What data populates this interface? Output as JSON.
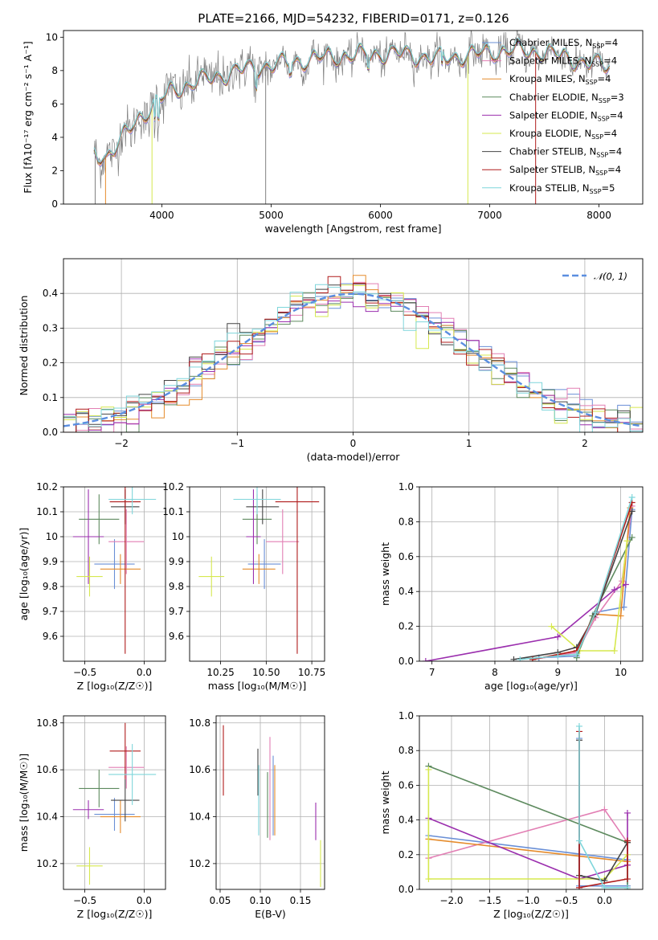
{
  "title": "PLATE=2166, MJD=54232, FIBERID=0171, z=0.126",
  "colors": {
    "chabrier_miles": "#6a8fd6",
    "salpeter_miles": "#e27fb4",
    "kroupa_miles": "#e58b2b",
    "chabrier_elodie": "#5d8a5e",
    "salpeter_elodie": "#9b2fae",
    "kroupa_elodie": "#d6e84f",
    "chabrier_stelib": "#444444",
    "salpeter_stelib": "#b01c1c",
    "kroupa_stelib": "#7fd6db",
    "data": "#808080",
    "normal": "#5b8ee0",
    "grid": "#b0b0b0"
  },
  "legend_top": [
    {
      "prefix": "Chabrier MILES, N",
      "sub": "SSP",
      "suffix": "=4",
      "color": "#6a8fd6"
    },
    {
      "prefix": "Salpeter MILES, N",
      "sub": "SSP",
      "suffix": "=4",
      "color": "#e27fb4"
    },
    {
      "prefix": "Kroupa MILES, N",
      "sub": "SSP",
      "suffix": "=4",
      "color": "#e58b2b"
    },
    {
      "prefix": "Chabrier ELODIE, N",
      "sub": "SSP",
      "suffix": "=3",
      "color": "#5d8a5e"
    },
    {
      "prefix": "Salpeter ELODIE, N",
      "sub": "SSP",
      "suffix": "=4",
      "color": "#9b2fae"
    },
    {
      "prefix": "Kroupa ELODIE, N",
      "sub": "SSP",
      "suffix": "=4",
      "color": "#d6e84f"
    },
    {
      "prefix": "Chabrier STELIB, N",
      "sub": "SSP",
      "suffix": "=4",
      "color": "#444444"
    },
    {
      "prefix": "Salpeter STELIB, N",
      "sub": "SSP",
      "suffix": "=4",
      "color": "#b01c1c"
    },
    {
      "prefix": "Kroupa STELIB, N",
      "sub": "SSP",
      "suffix": "=5",
      "color": "#7fd6db"
    }
  ],
  "chart_data": [
    {
      "type": "line",
      "id": "spectrum",
      "xlabel": "wavelength [Angstrom, rest frame]",
      "ylabel": "Flux [fλ10⁻¹⁷ erg cm⁻² s⁻¹ A⁻¹]",
      "xlim": [
        3100,
        8400
      ],
      "ylim": [
        0,
        10.4
      ],
      "xticks": [
        4000,
        5000,
        6000,
        7000,
        8000
      ],
      "yticks": [
        0,
        2,
        4,
        6,
        8,
        10
      ],
      "grid": false,
      "continuum": {
        "x": [
          3380,
          3500,
          3600,
          3700,
          3800,
          3900,
          4000,
          4100,
          4200,
          4300,
          4500,
          4700,
          5000,
          5200,
          5500,
          5800,
          6000,
          6200,
          6500,
          6800,
          7000,
          7200,
          7500,
          7700,
          7900,
          8100
        ],
        "y": [
          2.9,
          2.9,
          3.6,
          4.4,
          5.2,
          5.8,
          6.3,
          6.8,
          7.0,
          7.3,
          7.6,
          8.0,
          8.3,
          8.5,
          8.8,
          8.9,
          9.0,
          9.0,
          8.7,
          8.9,
          9.1,
          9.2,
          9.1,
          8.8,
          8.4,
          8.3
        ]
      }
    },
    {
      "type": "bar",
      "id": "residuals",
      "xlabel": "(data-model)/error",
      "ylabel": "Normed distribution",
      "xlim": [
        -2.5,
        2.5
      ],
      "ylim": [
        0,
        0.5
      ],
      "xticks": [
        -2,
        -1,
        0,
        1,
        2
      ],
      "xticklabels": [
        "−2",
        "−1",
        "0",
        "1",
        "2"
      ],
      "yticks": [
        0.0,
        0.1,
        0.2,
        0.3,
        0.4
      ],
      "legend": "𝒩(0, 1)",
      "legend_position": "top-right",
      "grid": true
    },
    {
      "type": "scatter",
      "id": "age_vs_z",
      "xlabel": "Z [log₁₀(Z/Z☉)]",
      "ylabel": "age  [log₁₀(age/yr)]",
      "xlim": [
        -0.68,
        0.18
      ],
      "ylim": [
        9.5,
        10.2
      ],
      "xticks": [
        -0.5,
        0.0
      ],
      "xticklabels": [
        "−0.5",
        "0.0"
      ],
      "yticks": [
        9.6,
        9.7,
        9.8,
        9.9,
        10.0,
        10.1,
        10.2
      ],
      "grid": true,
      "points": [
        {
          "c": "chabrier_miles",
          "x": -0.25,
          "xe": 0.17,
          "y": 9.89,
          "ye": 0.1
        },
        {
          "c": "salpeter_miles",
          "x": -0.15,
          "xe": 0.15,
          "y": 9.98,
          "ye": 0.13
        },
        {
          "c": "kroupa_miles",
          "x": -0.2,
          "xe": 0.17,
          "y": 9.87,
          "ye": 0.06
        },
        {
          "c": "chabrier_elodie",
          "x": -0.38,
          "xe": 0.17,
          "y": 10.07,
          "ye": 0.1
        },
        {
          "c": "salpeter_elodie",
          "x": -0.47,
          "xe": 0.13,
          "y": 10.0,
          "ye": 0.19
        },
        {
          "c": "kroupa_elodie",
          "x": -0.46,
          "xe": 0.11,
          "y": 9.84,
          "ye": 0.08
        },
        {
          "c": "chabrier_stelib",
          "x": -0.16,
          "xe": 0.12,
          "y": 10.12,
          "ye": 0.07
        },
        {
          "c": "salpeter_stelib",
          "x": -0.16,
          "xe": 0.13,
          "y": 10.14,
          "ye": 0.61
        },
        {
          "c": "kroupa_stelib",
          "x": -0.1,
          "xe": 0.2,
          "y": 10.15,
          "ye": 0.06
        }
      ]
    },
    {
      "type": "scatter",
      "id": "age_vs_mass",
      "xlabel": "mass [log₁₀(M/M☉)]",
      "ylabel": "",
      "xlim": [
        10.08,
        10.82
      ],
      "ylim": [
        9.5,
        10.2
      ],
      "xticks": [
        10.25,
        10.5,
        10.75
      ],
      "xticklabels": [
        "10.25",
        "10.50",
        "10.75"
      ],
      "yticks": [
        9.6,
        9.7,
        9.8,
        9.9,
        10.0,
        10.1,
        10.2
      ],
      "grid": true,
      "points": [
        {
          "c": "chabrier_miles",
          "x": 10.49,
          "xe": 0.09,
          "y": 9.89,
          "ye": 0.1
        },
        {
          "c": "salpeter_miles",
          "x": 10.59,
          "xe": 0.09,
          "y": 9.98,
          "ye": 0.13
        },
        {
          "c": "kroupa_miles",
          "x": 10.46,
          "xe": 0.09,
          "y": 9.87,
          "ye": 0.06
        },
        {
          "c": "chabrier_elodie",
          "x": 10.45,
          "xe": 0.08,
          "y": 10.07,
          "ye": 0.1
        },
        {
          "c": "salpeter_elodie",
          "x": 10.43,
          "xe": 0.04,
          "y": 10.0,
          "ye": 0.19
        },
        {
          "c": "kroupa_elodie",
          "x": 10.2,
          "xe": 0.07,
          "y": 9.84,
          "ye": 0.08
        },
        {
          "c": "chabrier_stelib",
          "x": 10.48,
          "xe": 0.09,
          "y": 10.12,
          "ye": 0.07
        },
        {
          "c": "salpeter_stelib",
          "x": 10.67,
          "xe": 0.12,
          "y": 10.14,
          "ye": 0.61
        },
        {
          "c": "kroupa_stelib",
          "x": 10.45,
          "xe": 0.13,
          "y": 10.15,
          "ye": 0.06
        }
      ]
    },
    {
      "type": "line",
      "id": "mass_weight_vs_age",
      "xlabel": "age  [log₁₀(age/yr)]",
      "ylabel": "mass weight",
      "xlim": [
        6.8,
        10.35
      ],
      "ylim": [
        0,
        1.0
      ],
      "xticks": [
        7,
        8,
        9,
        10
      ],
      "yticks": [
        0.0,
        0.2,
        0.4,
        0.6,
        0.8,
        1.0
      ],
      "grid": true,
      "series": [
        {
          "c": "chabrier_miles",
          "x": [
            8.7,
            9.3,
            9.6,
            10.05,
            10.18
          ],
          "y": [
            0.02,
            0.03,
            0.28,
            0.31,
            0.87
          ]
        },
        {
          "c": "salpeter_miles",
          "x": [
            8.6,
            9.3,
            9.6,
            10.02,
            10.18
          ],
          "y": [
            0.01,
            0.05,
            0.25,
            0.46,
            0.89
          ]
        },
        {
          "c": "kroupa_miles",
          "x": [
            8.6,
            9.3,
            9.6,
            10.0,
            10.15
          ],
          "y": [
            0.01,
            0.06,
            0.27,
            0.26,
            0.88
          ]
        },
        {
          "c": "chabrier_elodie",
          "x": [
            9.3,
            9.55,
            10.18
          ],
          "y": [
            0.02,
            0.26,
            0.71
          ]
        },
        {
          "c": "salpeter_elodie",
          "x": [
            6.9,
            9.0,
            9.9,
            10.08
          ],
          "y": [
            0.0,
            0.14,
            0.41,
            0.44
          ]
        },
        {
          "c": "kroupa_elodie",
          "x": [
            8.9,
            9.35,
            9.9,
            10.1
          ],
          "y": [
            0.2,
            0.06,
            0.06,
            0.69
          ]
        },
        {
          "c": "chabrier_stelib",
          "x": [
            8.3,
            9.0,
            9.3,
            9.6,
            10.18
          ],
          "y": [
            0.01,
            0.05,
            0.08,
            0.27,
            0.86
          ]
        },
        {
          "c": "salpeter_stelib",
          "x": [
            8.6,
            9.3,
            9.6,
            10.18
          ],
          "y": [
            0.01,
            0.06,
            0.28,
            0.91
          ]
        },
        {
          "c": "kroupa_stelib",
          "x": [
            8.4,
            9.0,
            9.3,
            9.6,
            10.18
          ],
          "y": [
            0.01,
            0.03,
            0.04,
            0.28,
            0.94
          ]
        }
      ]
    },
    {
      "type": "scatter",
      "id": "mass_vs_z",
      "xlabel": "Z [log₁₀(Z/Z☉)]",
      "ylabel": "mass [log₁₀(M/M☉)]",
      "xlim": [
        -0.68,
        0.18
      ],
      "ylim": [
        10.09,
        10.83
      ],
      "xticks": [
        -0.5,
        0.0
      ],
      "xticklabels": [
        "−0.5",
        "0.0"
      ],
      "yticks": [
        10.2,
        10.4,
        10.6,
        10.8
      ],
      "grid": true,
      "points": [
        {
          "c": "chabrier_miles",
          "x": -0.25,
          "xe": 0.17,
          "y": 10.41,
          "ye": 0.07
        },
        {
          "c": "salpeter_miles",
          "x": -0.15,
          "xe": 0.15,
          "y": 10.61,
          "ye": 0.09
        },
        {
          "c": "kroupa_miles",
          "x": -0.2,
          "xe": 0.17,
          "y": 10.4,
          "ye": 0.07
        },
        {
          "c": "chabrier_elodie",
          "x": -0.38,
          "xe": 0.17,
          "y": 10.52,
          "ye": 0.08
        },
        {
          "c": "salpeter_elodie",
          "x": -0.47,
          "xe": 0.13,
          "y": 10.43,
          "ye": 0.04
        },
        {
          "c": "kroupa_elodie",
          "x": -0.46,
          "xe": 0.11,
          "y": 10.19,
          "ye": 0.08
        },
        {
          "c": "chabrier_stelib",
          "x": -0.16,
          "xe": 0.12,
          "y": 10.47,
          "ye": 0.09
        },
        {
          "c": "salpeter_stelib",
          "x": -0.16,
          "xe": 0.13,
          "y": 10.68,
          "ye": 0.12
        },
        {
          "c": "kroupa_stelib",
          "x": -0.1,
          "xe": 0.2,
          "y": 10.58,
          "ye": 0.13
        }
      ]
    },
    {
      "type": "scatter",
      "id": "mass_vs_ebv",
      "xlabel": "E(B-V)",
      "ylabel": "",
      "xlim": [
        0.045,
        0.18
      ],
      "ylim": [
        10.09,
        10.83
      ],
      "xticks": [
        0.05,
        0.1,
        0.15
      ],
      "xticklabels": [
        "0.05",
        "0.10",
        "0.15"
      ],
      "yticks": [
        10.2,
        10.4,
        10.6,
        10.8
      ],
      "grid": true,
      "points": [
        {
          "c": "salpeter_stelib",
          "x": 0.054,
          "y": 10.64,
          "ye": 0.15
        },
        {
          "c": "chabrier_stelib",
          "x": 0.097,
          "y": 10.59,
          "ye": 0.1
        },
        {
          "c": "kroupa_stelib",
          "x": 0.098,
          "y": 10.47,
          "ye": 0.15
        },
        {
          "c": "chabrier_elodie",
          "x": 0.109,
          "y": 10.45,
          "ye": 0.14
        },
        {
          "c": "salpeter_miles",
          "x": 0.112,
          "y": 10.52,
          "ye": 0.22
        },
        {
          "c": "chabrier_miles",
          "x": 0.116,
          "y": 10.49,
          "ye": 0.17
        },
        {
          "c": "kroupa_miles",
          "x": 0.118,
          "y": 10.47,
          "ye": 0.15
        },
        {
          "c": "salpeter_elodie",
          "x": 0.169,
          "y": 10.38,
          "ye": 0.08
        },
        {
          "c": "kroupa_elodie",
          "x": 0.175,
          "y": 10.2,
          "ye": 0.1
        }
      ]
    },
    {
      "type": "line",
      "id": "mass_weight_vs_z",
      "xlabel": "Z [log₁₀(Z/Z☉)]",
      "ylabel": "mass weight",
      "xlim": [
        -2.42,
        0.5
      ],
      "ylim": [
        0,
        1.0
      ],
      "xticks": [
        -2.0,
        -1.5,
        -1.0,
        -0.5,
        0.0
      ],
      "xticklabels": [
        "−2.0",
        "−1.5",
        "−1.0",
        "−0.5",
        "0.0"
      ],
      "yticks": [
        0.0,
        0.2,
        0.4,
        0.6,
        0.8,
        1.0
      ],
      "grid": true,
      "series": [
        {
          "c": "chabrier_miles",
          "x": [
            -2.3,
            0.3,
            0.3,
            -0.33,
            -0.33
          ],
          "y": [
            0.31,
            0.17,
            0.02,
            0.02,
            0.87
          ]
        },
        {
          "c": "salpeter_miles",
          "x": [
            -2.3,
            0.0,
            0.3,
            0.3
          ],
          "y": [
            0.18,
            0.46,
            0.27,
            0.14
          ]
        },
        {
          "c": "kroupa_miles",
          "x": [
            -2.3,
            0.3,
            0.3
          ],
          "y": [
            0.29,
            0.16,
            0.28
          ]
        },
        {
          "c": "chabrier_elodie",
          "x": [
            -2.3,
            0.3,
            0.3
          ],
          "y": [
            0.71,
            0.27,
            0.0
          ]
        },
        {
          "c": "salpeter_elodie",
          "x": [
            -2.3,
            -0.33,
            0.3,
            0.3
          ],
          "y": [
            0.41,
            0.06,
            0.14,
            0.44
          ]
        },
        {
          "c": "kroupa_elodie",
          "x": [
            -2.3,
            -2.3,
            0.0,
            0.3
          ],
          "y": [
            0.69,
            0.06,
            0.06,
            0.2
          ]
        },
        {
          "c": "chabrier_stelib",
          "x": [
            -0.33,
            -0.33,
            0.0,
            0.3
          ],
          "y": [
            0.86,
            0.08,
            0.05,
            0.27
          ]
        },
        {
          "c": "salpeter_stelib",
          "x": [
            -0.33,
            -0.33,
            0.3,
            0.3
          ],
          "y": [
            0.91,
            0.01,
            0.06,
            0.28
          ]
        },
        {
          "c": "kroupa_stelib",
          "x": [
            -0.33,
            -0.33,
            0.0,
            0.3
          ],
          "y": [
            0.94,
            0.28,
            0.01,
            0.01
          ]
        }
      ]
    }
  ]
}
